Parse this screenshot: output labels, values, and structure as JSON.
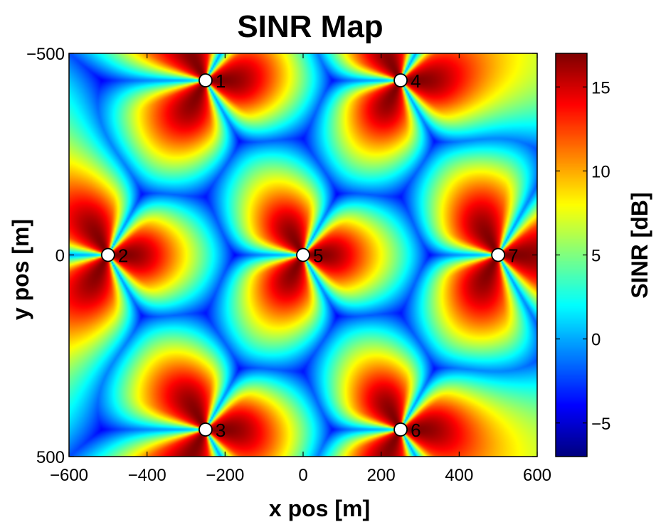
{
  "chart_data": {
    "type": "heatmap",
    "title": "SINR Map",
    "xlabel": "x pos [m]",
    "ylabel": "y pos [m]",
    "colorbar_label": "SINR [dB]",
    "xlim": [
      -600,
      600
    ],
    "ylim": [
      -500,
      500
    ],
    "y_axis_reversed": true,
    "x_ticks": [
      -600,
      -400,
      -200,
      0,
      200,
      400,
      600
    ],
    "x_tick_labels": [
      "−600",
      "−400",
      "−200",
      "0",
      "200",
      "400",
      "600"
    ],
    "y_ticks": [
      -500,
      0,
      500
    ],
    "y_tick_labels": [
      "−500",
      "0",
      "500"
    ],
    "color_range": [
      -7,
      17
    ],
    "colorbar_ticks": [
      15,
      10,
      5,
      0,
      -5
    ],
    "colorbar_tick_labels": [
      "15",
      "10",
      "5",
      "0",
      "−5"
    ],
    "colormap": "jet",
    "sites": [
      {
        "label": "1",
        "x": -250,
        "y": -433
      },
      {
        "label": "2",
        "x": -500,
        "y": 0
      },
      {
        "label": "3",
        "x": -250,
        "y": 433
      },
      {
        "label": "4",
        "x": 250,
        "y": -433
      },
      {
        "label": "5",
        "x": 0,
        "y": 0
      },
      {
        "label": "6",
        "x": 250,
        "y": 433
      },
      {
        "label": "7",
        "x": 500,
        "y": 0
      }
    ],
    "sectors_per_site": 3,
    "max_sinr_db": 17,
    "min_sinr_db": -7,
    "grid": false
  }
}
